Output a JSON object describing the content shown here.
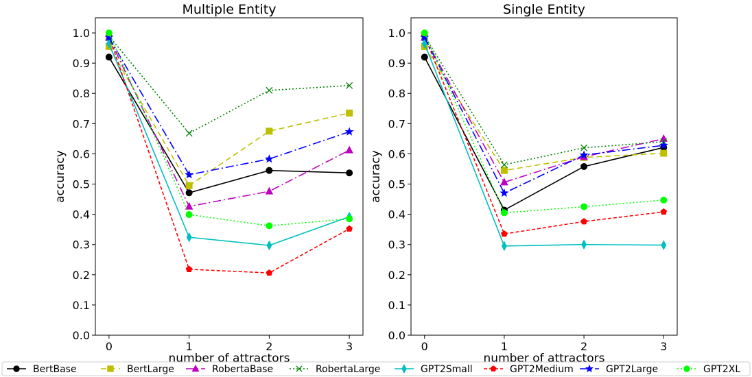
{
  "chart_data": [
    {
      "type": "line",
      "title": "Multiple Entity",
      "xlabel": "number of attractors",
      "ylabel": "accuracy",
      "x": [
        0,
        1,
        2,
        3
      ],
      "xticks": [
        "0",
        "1",
        "2",
        "3"
      ],
      "yticks": [
        "0.0",
        "0.1",
        "0.2",
        "0.3",
        "0.4",
        "0.5",
        "0.6",
        "0.7",
        "0.8",
        "0.9",
        "1.0"
      ],
      "ylim": [
        0.0,
        1.05
      ],
      "series": [
        {
          "name": "BertBase",
          "values": [
            0.92,
            0.471,
            0.545,
            0.537
          ]
        },
        {
          "name": "BertLarge",
          "values": [
            0.955,
            0.495,
            0.675,
            0.735
          ]
        },
        {
          "name": "RobertaBase",
          "values": [
            0.985,
            0.426,
            0.476,
            0.612
          ]
        },
        {
          "name": "RobertaLarge",
          "values": [
            0.99,
            0.668,
            0.81,
            0.826
          ]
        },
        {
          "name": "GPT2Small",
          "values": [
            0.965,
            0.324,
            0.297,
            0.392
          ]
        },
        {
          "name": "GPT2Medium",
          "values": [
            0.99,
            0.218,
            0.206,
            0.352
          ]
        },
        {
          "name": "GPT2Large",
          "values": [
            0.985,
            0.531,
            0.583,
            0.673
          ]
        },
        {
          "name": "GPT2XL",
          "values": [
            1.0,
            0.399,
            0.362,
            0.385
          ]
        }
      ]
    },
    {
      "type": "line",
      "title": "Single Entity",
      "xlabel": "number of attractors",
      "ylabel": "accuracy",
      "x": [
        0,
        1,
        2,
        3
      ],
      "xticks": [
        "0",
        "1",
        "2",
        "3"
      ],
      "yticks": [
        "0.0",
        "0.1",
        "0.2",
        "0.3",
        "0.4",
        "0.5",
        "0.6",
        "0.7",
        "0.8",
        "0.9",
        "1.0"
      ],
      "ylim": [
        0.0,
        1.05
      ],
      "series": [
        {
          "name": "BertBase",
          "values": [
            0.92,
            0.414,
            0.558,
            0.621
          ]
        },
        {
          "name": "BertLarge",
          "values": [
            0.955,
            0.545,
            0.588,
            0.602
          ]
        },
        {
          "name": "RobertaBase",
          "values": [
            0.985,
            0.506,
            0.59,
            0.65
          ]
        },
        {
          "name": "RobertaLarge",
          "values": [
            0.99,
            0.564,
            0.62,
            0.64
          ]
        },
        {
          "name": "GPT2Small",
          "values": [
            0.965,
            0.295,
            0.3,
            0.298
          ]
        },
        {
          "name": "GPT2Medium",
          "values": [
            0.99,
            0.335,
            0.376,
            0.408
          ]
        },
        {
          "name": "GPT2Large",
          "values": [
            0.985,
            0.47,
            0.596,
            0.628
          ]
        },
        {
          "name": "GPT2XL",
          "values": [
            1.0,
            0.405,
            0.425,
            0.447
          ]
        }
      ]
    }
  ],
  "legend": {
    "placement": "bottom",
    "entries": [
      "BertBase",
      "BertLarge",
      "RobertaBase",
      "RobertaLarge",
      "GPT2Small",
      "GPT2Medium",
      "GPT2Large",
      "GPT2XL"
    ]
  },
  "styles": [
    {
      "color": "#000000",
      "dash": "",
      "marker": "circle"
    },
    {
      "color": "#bfbf00",
      "dash": "8,5",
      "marker": "square"
    },
    {
      "color": "#bf00bf",
      "dash": "12,4,2,4",
      "marker": "triangle"
    },
    {
      "color": "#008000",
      "dash": "2,3",
      "marker": "x"
    },
    {
      "color": "#00bfbf",
      "dash": "",
      "marker": "diamond"
    },
    {
      "color": "#ff0000",
      "dash": "5,3",
      "marker": "pentagon"
    },
    {
      "color": "#0000ff",
      "dash": "12,4,2,4",
      "marker": "star"
    },
    {
      "color": "#00ff00",
      "dash": "2,3",
      "marker": "circle"
    }
  ]
}
